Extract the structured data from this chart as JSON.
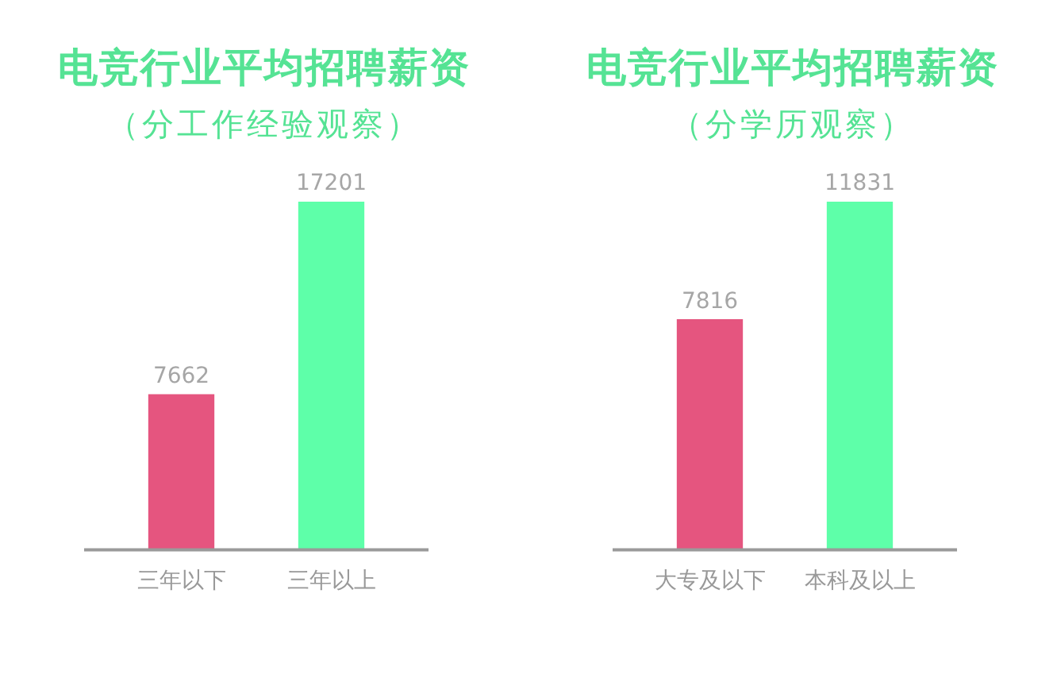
{
  "chart_data": [
    {
      "type": "bar",
      "title": "电竞行业平均招聘薪资",
      "subtitle": "（分工作经验观察）",
      "categories": [
        "三年以下",
        "三年以上"
      ],
      "values": [
        7662,
        17201
      ],
      "colors": [
        "#e5557f",
        "#5effa9"
      ],
      "data_labels": true,
      "tick_labels": "x"
    },
    {
      "type": "bar",
      "title": "电竞行业平均招聘薪资",
      "subtitle": "（分学历观察）",
      "categories": [
        "大专及以下",
        "本科及以上"
      ],
      "values": [
        7816,
        11831
      ],
      "colors": [
        "#e5557f",
        "#5effa9"
      ],
      "data_labels": true,
      "tick_labels": "x"
    }
  ]
}
